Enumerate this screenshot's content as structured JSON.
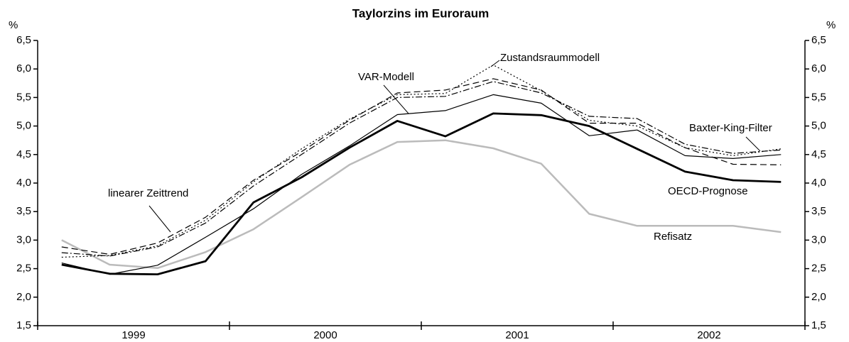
{
  "chart_data": {
    "type": "line",
    "title": "Taylorzins im Euroraum",
    "y_unit": "%",
    "x": [
      1999.125,
      1999.375,
      1999.625,
      1999.875,
      2000.125,
      2000.375,
      2000.625,
      2000.875,
      2001.125,
      2001.375,
      2001.625,
      2001.875,
      2002.125,
      2002.375,
      2002.625,
      2002.875
    ],
    "xlim": [
      1999,
      2003
    ],
    "xticks": [
      1999,
      2000,
      2001,
      2002,
      2003
    ],
    "xtick_labels": [
      {
        "value": 1999.5,
        "label": "1999"
      },
      {
        "value": 2000.5,
        "label": "2000"
      },
      {
        "value": 2001.5,
        "label": "2001"
      },
      {
        "value": 2002.5,
        "label": "2002"
      }
    ],
    "ylim": [
      1.5,
      6.5
    ],
    "yticks": [
      {
        "value": 1.5,
        "label": "1,5"
      },
      {
        "value": 2,
        "label": "2,0"
      },
      {
        "value": 2.5,
        "label": "2,5"
      },
      {
        "value": 3,
        "label": "3,0"
      },
      {
        "value": 3.5,
        "label": "3,5"
      },
      {
        "value": 4,
        "label": "4,0"
      },
      {
        "value": 4.5,
        "label": "4,5"
      },
      {
        "value": 5,
        "label": "5,0"
      },
      {
        "value": 5.5,
        "label": "5,5"
      },
      {
        "value": 6,
        "label": "6,0"
      },
      {
        "value": 6.5,
        "label": "6,5"
      }
    ],
    "series": [
      {
        "name": "Refisatz",
        "color": "#bbbbbb",
        "width": 2.5,
        "dash": "solid",
        "values": [
          3.0,
          2.57,
          2.51,
          2.79,
          3.19,
          3.75,
          4.32,
          4.72,
          4.75,
          4.61,
          4.34,
          3.46,
          3.25,
          3.25,
          3.25,
          3.14
        ]
      },
      {
        "name": "linearer Zeittrend",
        "color": "#000000",
        "width": 1.2,
        "dash": "dashed",
        "values": [
          2.88,
          2.75,
          2.95,
          3.4,
          4.05,
          4.55,
          5.1,
          5.58,
          5.63,
          5.83,
          5.63,
          5.05,
          5.05,
          4.62,
          4.33,
          4.32
        ]
      },
      {
        "name": "Zustandsraummodell",
        "color": "#000000",
        "width": 1.2,
        "dash": "dotted",
        "values": [
          2.7,
          2.73,
          2.9,
          3.35,
          4.02,
          4.6,
          5.12,
          5.55,
          5.57,
          6.07,
          5.62,
          5.1,
          5.0,
          4.62,
          4.48,
          4.6
        ]
      },
      {
        "name": "Baxter-King-Filter",
        "color": "#000000",
        "width": 1.2,
        "dash": "dashdot",
        "values": [
          2.78,
          2.72,
          2.88,
          3.3,
          3.95,
          4.5,
          5.05,
          5.5,
          5.52,
          5.78,
          5.58,
          5.17,
          5.13,
          4.68,
          4.52,
          4.58
        ]
      },
      {
        "name": "VAR-Modell",
        "color": "#000000",
        "width": 1.2,
        "dash": "solid",
        "values": [
          2.6,
          2.4,
          2.56,
          3.05,
          3.55,
          4.15,
          4.65,
          5.2,
          5.27,
          5.55,
          5.4,
          4.83,
          4.93,
          4.48,
          4.43,
          4.5
        ]
      },
      {
        "name": "OECD-Prognose",
        "color": "#000000",
        "width": 2.8,
        "dash": "solid",
        "values": [
          2.57,
          2.41,
          2.4,
          2.63,
          3.66,
          4.1,
          4.62,
          5.09,
          4.82,
          5.22,
          5.19,
          5.0,
          4.6,
          4.2,
          4.05,
          4.02
        ]
      }
    ]
  }
}
